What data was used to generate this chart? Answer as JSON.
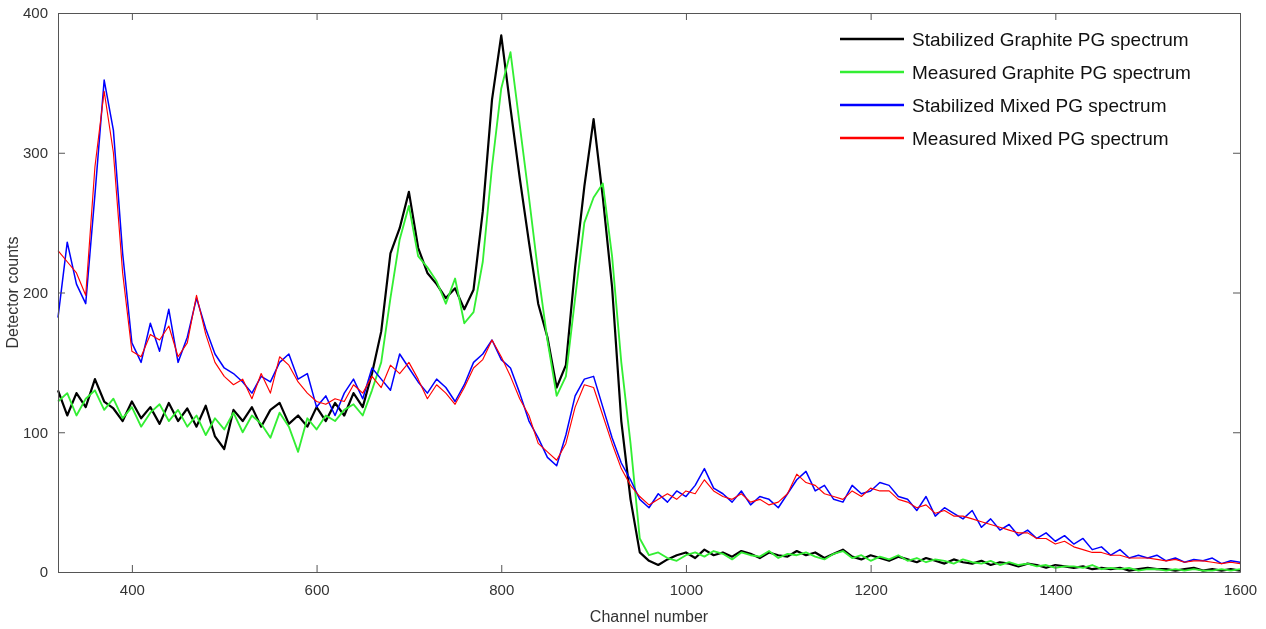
{
  "chart_data": {
    "type": "line",
    "xlabel": "Channel number",
    "ylabel": "Detector counts",
    "xlim": [
      320,
      1600
    ],
    "ylim": [
      0,
      400
    ],
    "xticks": [
      400,
      600,
      800,
      1000,
      1200,
      1400,
      1600
    ],
    "yticks": [
      0,
      100,
      200,
      300,
      400
    ],
    "grid": false,
    "legend": "top right",
    "marker": "none",
    "line_style": "solid",
    "x": [
      320,
      330,
      340,
      350,
      360,
      370,
      380,
      390,
      400,
      410,
      420,
      430,
      440,
      450,
      460,
      470,
      480,
      490,
      500,
      510,
      520,
      530,
      540,
      550,
      560,
      570,
      580,
      590,
      600,
      610,
      620,
      630,
      640,
      650,
      660,
      670,
      680,
      690,
      700,
      710,
      720,
      730,
      740,
      750,
      760,
      770,
      780,
      790,
      800,
      810,
      820,
      830,
      840,
      850,
      860,
      870,
      880,
      890,
      900,
      910,
      920,
      930,
      940,
      950,
      960,
      970,
      980,
      990,
      1000,
      1010,
      1020,
      1030,
      1040,
      1050,
      1060,
      1070,
      1080,
      1090,
      1100,
      1110,
      1120,
      1130,
      1140,
      1150,
      1160,
      1170,
      1180,
      1190,
      1200,
      1210,
      1220,
      1230,
      1240,
      1250,
      1260,
      1270,
      1280,
      1290,
      1300,
      1310,
      1320,
      1330,
      1340,
      1350,
      1360,
      1370,
      1380,
      1390,
      1400,
      1410,
      1420,
      1430,
      1440,
      1450,
      1460,
      1470,
      1480,
      1490,
      1500,
      1510,
      1520,
      1530,
      1540,
      1550,
      1560,
      1570,
      1580,
      1590,
      1600
    ],
    "series": [
      {
        "name": "Stabilized Graphite PG spectrum",
        "color": "#000000",
        "values": [
          130,
          112,
          128,
          118,
          138,
          122,
          117,
          108,
          122,
          110,
          118,
          106,
          121,
          108,
          117,
          104,
          119,
          97,
          88,
          116,
          108,
          118,
          104,
          116,
          121,
          106,
          112,
          104,
          118,
          108,
          121,
          112,
          128,
          118,
          142,
          172,
          228,
          246,
          272,
          232,
          214,
          206,
          196,
          203,
          188,
          202,
          258,
          338,
          384,
          332,
          282,
          236,
          192,
          168,
          132,
          148,
          218,
          276,
          324,
          268,
          204,
          108,
          52,
          14,
          8,
          5,
          9,
          12,
          14,
          10,
          16,
          12,
          14,
          11,
          15,
          13,
          10,
          14,
          12,
          11,
          15,
          12,
          14,
          10,
          13,
          16,
          11,
          9,
          12,
          10,
          8,
          11,
          9,
          7,
          10,
          8,
          6,
          9,
          7,
          6,
          8,
          5,
          7,
          6,
          4,
          6,
          5,
          3,
          5,
          4,
          3,
          4,
          2,
          3,
          2,
          3,
          1,
          2,
          3,
          2,
          2,
          1,
          2,
          3,
          1,
          2,
          1,
          2,
          1
        ]
      },
      {
        "name": "Measured Graphite PG spectrum",
        "color": "#33ee33",
        "values": [
          122,
          128,
          112,
          124,
          130,
          116,
          124,
          110,
          118,
          104,
          114,
          120,
          108,
          116,
          104,
          112,
          98,
          110,
          102,
          114,
          100,
          112,
          106,
          96,
          114,
          104,
          86,
          110,
          102,
          112,
          108,
          116,
          120,
          112,
          130,
          150,
          196,
          238,
          262,
          226,
          218,
          208,
          192,
          210,
          178,
          186,
          222,
          290,
          346,
          372,
          320,
          268,
          214,
          166,
          126,
          140,
          196,
          250,
          268,
          278,
          226,
          150,
          92,
          24,
          12,
          14,
          10,
          8,
          12,
          14,
          11,
          15,
          13,
          9,
          14,
          12,
          11,
          15,
          10,
          13,
          12,
          14,
          11,
          9,
          13,
          15,
          10,
          12,
          8,
          11,
          9,
          12,
          8,
          10,
          7,
          9,
          8,
          6,
          9,
          7,
          6,
          8,
          5,
          7,
          5,
          6,
          4,
          5,
          3,
          4,
          4,
          3,
          5,
          2,
          3,
          2,
          3,
          1,
          2,
          2,
          1,
          2,
          1,
          2,
          1,
          1,
          2,
          1,
          2
        ]
      },
      {
        "name": "Stabilized Mixed PG spectrum",
        "color": "#0000ff",
        "values": [
          182,
          236,
          206,
          192,
          270,
          352,
          316,
          228,
          164,
          150,
          178,
          158,
          188,
          150,
          168,
          196,
          174,
          156,
          146,
          142,
          136,
          128,
          140,
          136,
          150,
          156,
          138,
          142,
          118,
          126,
          112,
          128,
          138,
          124,
          146,
          138,
          130,
          156,
          146,
          136,
          128,
          138,
          132,
          122,
          134,
          150,
          156,
          166,
          152,
          146,
          128,
          108,
          96,
          82,
          76,
          98,
          126,
          138,
          140,
          118,
          96,
          78,
          66,
          52,
          46,
          56,
          50,
          58,
          54,
          62,
          74,
          60,
          56,
          50,
          58,
          48,
          54,
          52,
          46,
          56,
          66,
          72,
          58,
          62,
          52,
          50,
          62,
          56,
          58,
          64,
          62,
          54,
          52,
          44,
          54,
          40,
          46,
          42,
          38,
          44,
          32,
          38,
          30,
          34,
          26,
          30,
          24,
          28,
          22,
          26,
          20,
          24,
          16,
          18,
          12,
          16,
          10,
          12,
          10,
          12,
          8,
          10,
          7,
          9,
          8,
          10,
          6,
          8,
          7
        ]
      },
      {
        "name": "Measured Mixed PG spectrum",
        "color": "#ff0000",
        "values": [
          230,
          222,
          214,
          198,
          290,
          344,
          300,
          214,
          158,
          154,
          170,
          166,
          176,
          154,
          164,
          198,
          170,
          150,
          140,
          134,
          138,
          124,
          142,
          128,
          154,
          148,
          136,
          128,
          122,
          120,
          124,
          122,
          134,
          128,
          140,
          132,
          148,
          142,
          150,
          138,
          124,
          134,
          128,
          120,
          132,
          146,
          152,
          166,
          154,
          140,
          124,
          112,
          92,
          86,
          80,
          92,
          118,
          134,
          132,
          112,
          92,
          74,
          62,
          54,
          48,
          52,
          56,
          52,
          58,
          56,
          66,
          58,
          54,
          52,
          56,
          50,
          52,
          48,
          50,
          56,
          70,
          64,
          62,
          56,
          54,
          52,
          58,
          54,
          60,
          58,
          58,
          52,
          50,
          46,
          48,
          42,
          44,
          40,
          40,
          38,
          36,
          34,
          32,
          30,
          28,
          28,
          24,
          24,
          20,
          22,
          18,
          16,
          14,
          14,
          12,
          12,
          10,
          10,
          10,
          9,
          8,
          9,
          7,
          8,
          8,
          7,
          6,
          7,
          6
        ]
      }
    ]
  }
}
